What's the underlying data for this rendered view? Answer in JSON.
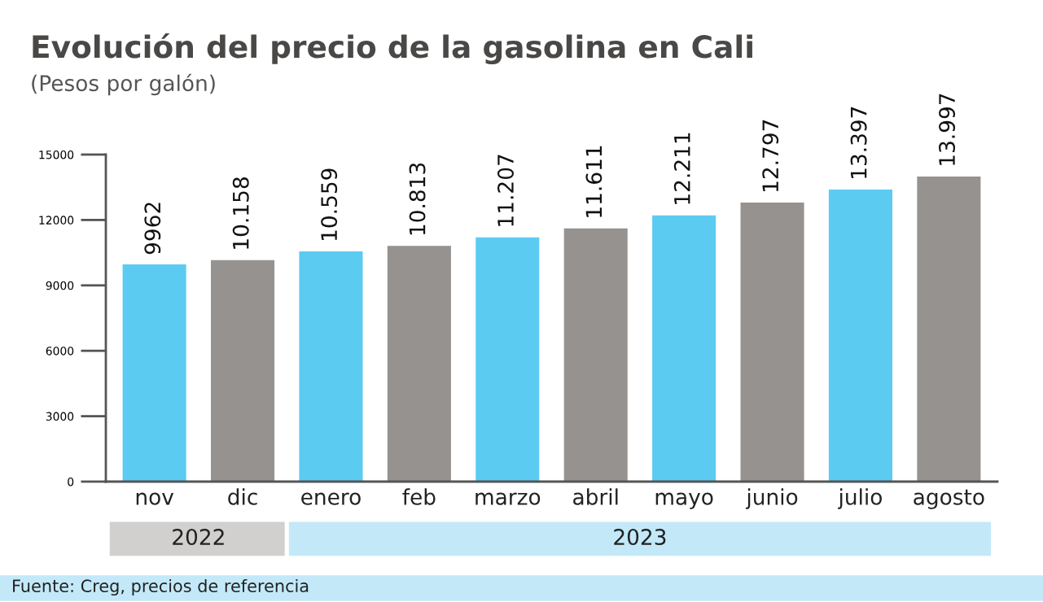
{
  "chart_data": {
    "type": "bar",
    "title": "Evolución del precio de la gasolina en Cali",
    "subtitle": "(Pesos por galón)",
    "categories": [
      "nov",
      "dic",
      "enero",
      "feb",
      "marzo",
      "abril",
      "mayo",
      "junio",
      "julio",
      "agosto"
    ],
    "values": [
      9962,
      10158,
      10559,
      10813,
      11207,
      11611,
      12211,
      12797,
      13397,
      13997
    ],
    "colors": [
      "#5ccbf2",
      "#96928f",
      "#5ccbf2",
      "#96928f",
      "#5ccbf2",
      "#96928f",
      "#5ccbf2",
      "#96928f",
      "#5ccbf2",
      "#96928f"
    ],
    "value_labels": [
      "9962",
      "10.158",
      "10.559",
      "10.813",
      "11.207",
      "11.611",
      "12.211",
      "12.797",
      "13.397",
      "13.997"
    ],
    "ylim": [
      0,
      15000
    ],
    "yticks": [
      0,
      3000,
      6000,
      9000,
      12000,
      15000
    ],
    "grid": false,
    "legend": false,
    "annotations": [
      "2022",
      "2023",
      "Fuente: Creg, precios de referencia"
    ]
  }
}
